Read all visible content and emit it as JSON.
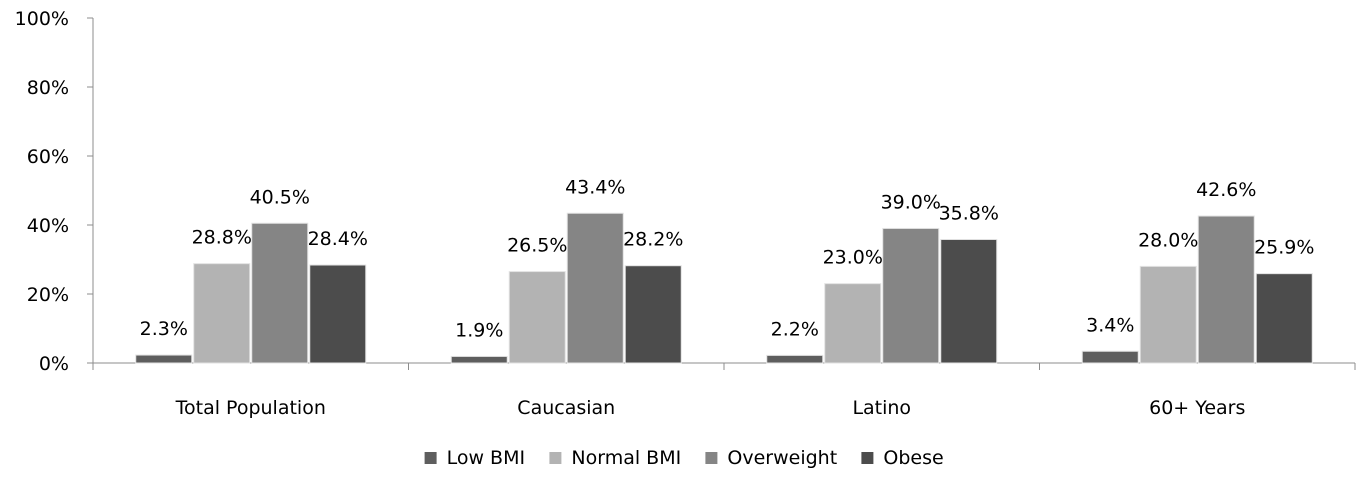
{
  "chart_data": {
    "type": "bar",
    "categories": [
      "Total Population",
      "Caucasian",
      "Latino",
      "60+ Years"
    ],
    "series": [
      {
        "name": "Low BMI",
        "values": [
          2.3,
          1.9,
          2.2,
          3.4
        ],
        "labels": [
          "2.3%",
          "1.9%",
          "2.2%",
          "3.4%"
        ],
        "color": "#5e5e5e"
      },
      {
        "name": "Normal BMI",
        "values": [
          28.8,
          26.5,
          23.0,
          28.0
        ],
        "labels": [
          "28.8%",
          "26.5%",
          "23.0%",
          "28.0%"
        ],
        "color": "#b3b3b3"
      },
      {
        "name": "Overweight",
        "values": [
          40.5,
          43.4,
          39.0,
          42.6
        ],
        "labels": [
          "40.5%",
          "43.4%",
          "39.0%",
          "42.6%"
        ],
        "color": "#858585"
      },
      {
        "name": "Obese",
        "values": [
          28.4,
          28.2,
          35.8,
          25.9
        ],
        "labels": [
          "28.4%",
          "28.2%",
          "35.8%",
          "25.9%"
        ],
        "color": "#4c4c4c"
      }
    ],
    "y_ticks": [
      "0%",
      "20%",
      "40%",
      "60%",
      "80%",
      "100%"
    ],
    "ylim": [
      0,
      100
    ],
    "grid": false,
    "legend_position": "bottom"
  }
}
